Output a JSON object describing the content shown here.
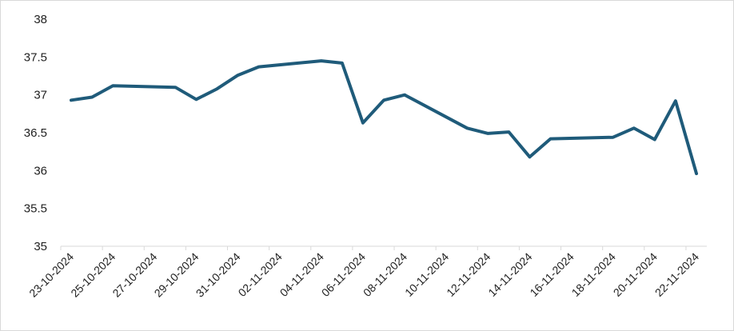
{
  "chart_data": {
    "type": "line",
    "title": "",
    "xlabel": "",
    "ylabel": "",
    "ylim": [
      35,
      38
    ],
    "y_ticks": [
      "35",
      "35.5",
      "36",
      "36.5",
      "37",
      "37.5",
      "38"
    ],
    "x_tick_labels": [
      "23-10-2024",
      "25-10-2024",
      "27-10-2024",
      "29-10-2024",
      "31-10-2024",
      "02-11-2024",
      "04-11-2024",
      "06-11-2024",
      "08-11-2024",
      "10-11-2024",
      "12-11-2024",
      "14-11-2024",
      "16-11-2024",
      "18-11-2024",
      "20-11-2024",
      "22-11-2024"
    ],
    "x_start": "2024-10-23",
    "x_end": "2024-11-22",
    "grid": false,
    "legend": "none",
    "line_color": "#1f5b7a",
    "series": [
      {
        "x": [
          "2024-10-23",
          "2024-10-24",
          "2024-10-25",
          "2024-10-28",
          "2024-10-29",
          "2024-10-30",
          "2024-10-31",
          "2024-11-01",
          "2024-11-04",
          "2024-11-05",
          "2024-11-06",
          "2024-11-07",
          "2024-11-08",
          "2024-11-11",
          "2024-11-12",
          "2024-11-13",
          "2024-11-14",
          "2024-11-15",
          "2024-11-18",
          "2024-11-19",
          "2024-11-20",
          "2024-11-21",
          "2024-11-22"
        ],
        "values": [
          36.93,
          36.97,
          37.12,
          37.1,
          36.94,
          37.08,
          37.26,
          37.37,
          37.45,
          37.42,
          36.63,
          36.93,
          37.0,
          36.56,
          36.49,
          36.51,
          36.18,
          36.42,
          36.44,
          36.56,
          36.41,
          36.92,
          35.96
        ]
      }
    ]
  }
}
